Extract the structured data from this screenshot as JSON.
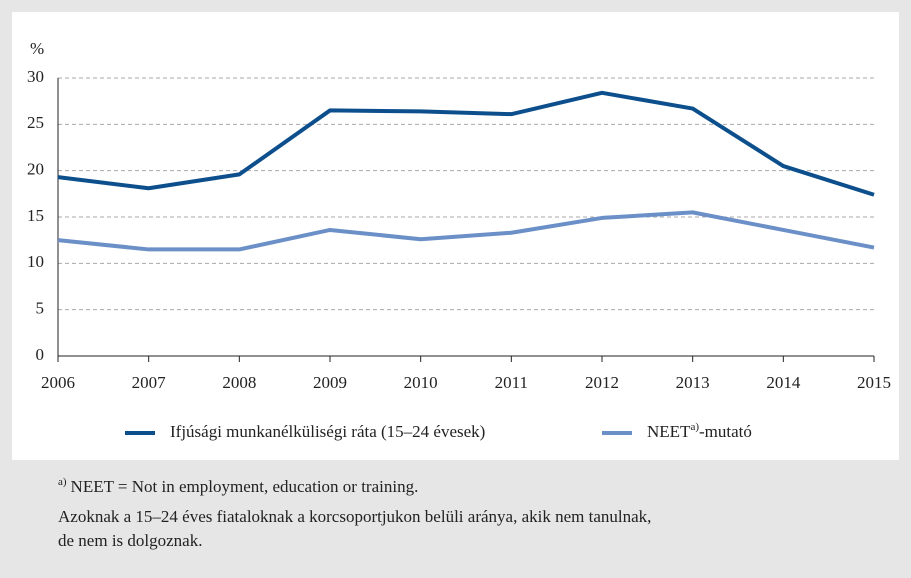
{
  "chart_data": {
    "type": "line",
    "y_label": "%",
    "x": [
      2006,
      2007,
      2008,
      2009,
      2010,
      2011,
      2012,
      2013,
      2014,
      2015
    ],
    "xlim": [
      2006,
      2015
    ],
    "xticks": [
      2006,
      2007,
      2008,
      2009,
      2010,
      2011,
      2012,
      2013,
      2014,
      2015
    ],
    "ylim": [
      0,
      30
    ],
    "yticks": [
      0,
      5,
      10,
      15,
      20,
      25,
      30
    ],
    "grid": true,
    "series": [
      {
        "name": "Ifjúsági munkanélküliségi ráta (15–24 évesek)",
        "color": "#0c4f8c",
        "values": [
          19.3,
          18.1,
          19.6,
          26.5,
          26.4,
          26.1,
          28.4,
          26.7,
          20.5,
          17.4
        ]
      },
      {
        "name": "NEET",
        "name_sup": "a)",
        "name_suffix": "-mutató",
        "color": "#6b8fc7",
        "values": [
          12.5,
          11.5,
          11.5,
          13.6,
          12.6,
          13.3,
          14.9,
          15.5,
          13.6,
          11.7
        ]
      }
    ],
    "footnote_marker": "a)",
    "footnote": "NEET = Not in employment, education or training.",
    "note_lines": [
      "Azoknak a 15–24 éves fiataloknak a korcsoportjukon belüli aránya, akik nem tanulnak,",
      "de nem is dolgoznak."
    ]
  }
}
